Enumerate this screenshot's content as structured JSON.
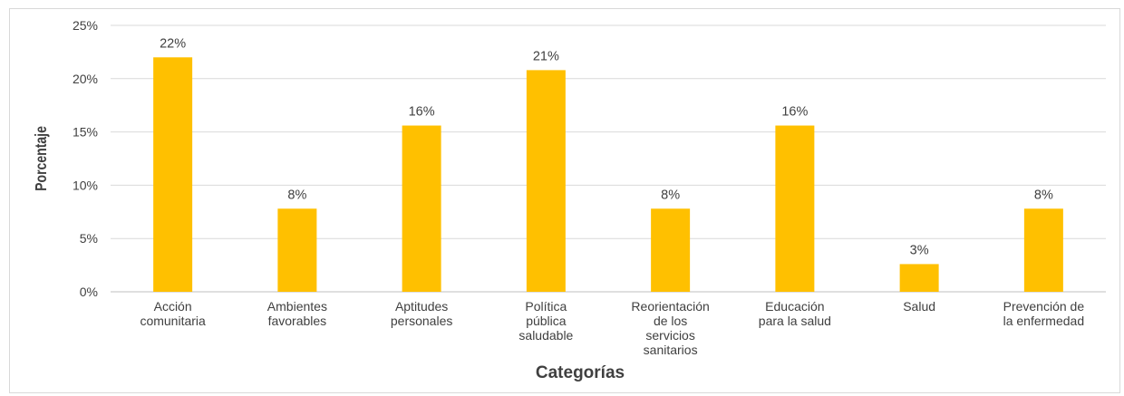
{
  "chart_data": {
    "type": "bar",
    "categories": [
      [
        "Acción",
        "comunitaria"
      ],
      [
        "Ambientes",
        "favorables"
      ],
      [
        "Aptitudes",
        "personales"
      ],
      [
        "Política",
        "pública",
        "saludable"
      ],
      [
        "Reorientación",
        "de los",
        "servicios",
        "sanitarios"
      ],
      [
        "Educación",
        "para la salud"
      ],
      [
        "Salud"
      ],
      [
        "Prevención de",
        "la enfermedad"
      ]
    ],
    "values": [
      22,
      7.8,
      15.6,
      20.8,
      7.8,
      15.6,
      2.6,
      7.8
    ],
    "data_labels": [
      "22%",
      "8%",
      "16%",
      "21%",
      "8%",
      "16%",
      "3%",
      "8%"
    ],
    "yticks": [
      "0%",
      "5%",
      "10%",
      "15%",
      "20%",
      "25%"
    ],
    "ylim": [
      0,
      25
    ],
    "xlabel": "Categorías",
    "ylabel": "Porcentaje",
    "bar_color": "#ffc000",
    "grid": true
  }
}
